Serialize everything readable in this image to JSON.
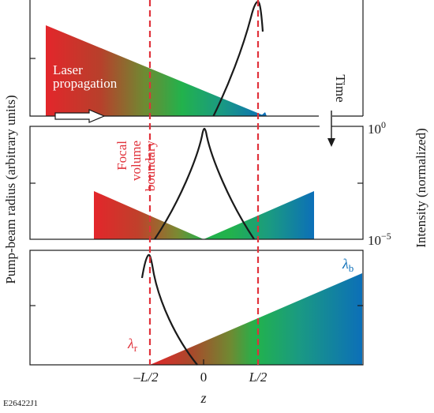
{
  "labels": {
    "left_axis": "Pump-beam radius (arbitrary units)",
    "right_axis": "Intensity (normalized)",
    "x_axis": "z",
    "x_ticks": [
      "–L/2",
      "0",
      "L/2"
    ],
    "laser_propagation_line1": "Laser",
    "laser_propagation_line2": "propagation",
    "time": "Time",
    "focal_line1": "Focal",
    "focal_line2": "volume",
    "focal_line3": "boundary",
    "intensity_top": "10",
    "intensity_top_exp": "0",
    "intensity_bottom": "10",
    "intensity_bottom_exp": "−5",
    "lambda_r": "λ",
    "lambda_r_sub": "r",
    "lambda_b": "λ",
    "lambda_b_sub": "b",
    "figure_id": "E26422J1"
  },
  "colors": {
    "red": "#e3262b",
    "green": "#22b24c",
    "blue": "#0c6fb8",
    "boundary": "#e0323b",
    "curve": "#1a1a1a"
  }
}
